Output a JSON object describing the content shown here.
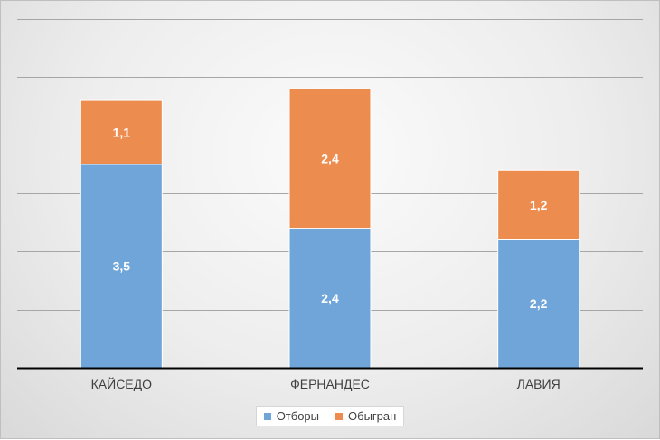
{
  "chart_data": {
    "type": "bar",
    "stacked": true,
    "categories": [
      "КАЙСЕДО",
      "ФЕРНАНДЕС",
      "ЛАВИЯ"
    ],
    "series": [
      {
        "name": "Отборы",
        "values": [
          3.5,
          2.4,
          2.2
        ],
        "labels": [
          "3,5",
          "2,4",
          "2,2"
        ],
        "color": "#6fa5d8"
      },
      {
        "name": "Обыгран",
        "values": [
          1.1,
          2.4,
          1.2
        ],
        "labels": [
          "1,1",
          "2,4",
          "1,2"
        ],
        "color": "#ed8c4f"
      }
    ],
    "ylim": [
      0,
      6
    ],
    "grid": true,
    "legend_position": "bottom"
  }
}
